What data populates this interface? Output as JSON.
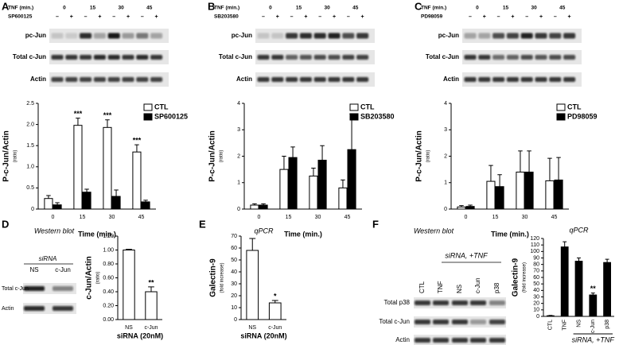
{
  "panels": [
    "A",
    "B",
    "C",
    "D",
    "E",
    "F"
  ],
  "blots": [
    {
      "time_label": "TNF (min.)",
      "times": [
        "0",
        "15",
        "30",
        "45"
      ],
      "treatment": "SP600125",
      "signs": [
        "–",
        "+",
        "–",
        "+",
        "–",
        "+",
        "–",
        "+"
      ],
      "rows": [
        "pc-Jun",
        "Total c-Jun",
        "Actin"
      ]
    },
    {
      "time_label": "TNF (min.)",
      "times": [
        "0",
        "15",
        "30",
        "45"
      ],
      "treatment": "SB203580",
      "signs": [
        "–",
        "+",
        "–",
        "+",
        "–",
        "+",
        "–",
        "+"
      ],
      "rows": [
        "pc-Jun",
        "Total c-Jun",
        "Actin"
      ]
    },
    {
      "time_label": "TNF (min.)",
      "times": [
        "0",
        "15",
        "30",
        "45"
      ],
      "treatment": "PD98059",
      "signs": [
        "–",
        "+",
        "–",
        "+",
        "–",
        "+",
        "–",
        "+"
      ],
      "rows": [
        "pc-Jun",
        "Total c-Jun",
        "Actin"
      ]
    },
    {
      "title": "Western blot",
      "group": "siRNA",
      "lanes": [
        "NS",
        "c-Jun"
      ],
      "rows": [
        "Total c-Jun",
        "Actin"
      ]
    },
    {
      "title": "Western blot",
      "group": "siRNA, +TNF",
      "lanes": [
        "CTL",
        "TNF",
        "NS",
        "c-Jun",
        "p38"
      ],
      "rows": [
        "Total p38",
        "Total c-Jun",
        "Actin"
      ]
    }
  ],
  "chart_data": [
    {
      "type": "bar",
      "ylabel": "P-c-Jun/Actin",
      "ylabel_note": "(ratio)",
      "xlabel": "Time (min.)",
      "categories": [
        "0",
        "15",
        "30",
        "45"
      ],
      "series": [
        {
          "name": "CTL",
          "color": "#ffffff",
          "values": [
            0.25,
            1.98,
            1.93,
            1.35
          ],
          "errors": [
            0.07,
            0.17,
            0.18,
            0.17
          ],
          "significance": [
            null,
            "***",
            "***",
            "***"
          ]
        },
        {
          "name": "SP600125",
          "color": "#000000",
          "values": [
            0.1,
            0.4,
            0.3,
            0.17
          ],
          "errors": [
            0.05,
            0.07,
            0.15,
            0.04
          ]
        }
      ],
      "ylim": [
        0,
        2.5
      ],
      "yticks": [
        0,
        0.5,
        {
          "value": 1,
          "label": "1.0"
        },
        1.5,
        {
          "value": 2,
          "label": "2.0"
        },
        2.5
      ]
    },
    {
      "type": "bar",
      "ylabel": "P-c-Jun/Actin",
      "ylabel_note": "(ratio)",
      "xlabel": "Time (min.)",
      "categories": [
        "0",
        "15",
        "30",
        "45"
      ],
      "series": [
        {
          "name": "CTL",
          "color": "#ffffff",
          "values": [
            0.15,
            1.5,
            1.25,
            0.8
          ],
          "errors": [
            0.05,
            0.5,
            0.3,
            0.3
          ]
        },
        {
          "name": "SB203580",
          "color": "#000000",
          "values": [
            0.15,
            1.95,
            1.85,
            2.25
          ],
          "errors": [
            0.05,
            0.4,
            0.55,
            1.35
          ]
        }
      ],
      "ylim": [
        0,
        4
      ],
      "yticks": [
        0,
        1,
        2,
        3,
        4
      ]
    },
    {
      "type": "bar",
      "ylabel": "P-c-Jun/Actin",
      "ylabel_note": "(ratio)",
      "xlabel": "Time (min.)",
      "categories": [
        "0",
        "15",
        "30",
        "45"
      ],
      "series": [
        {
          "name": "CTL",
          "color": "#ffffff",
          "values": [
            0.08,
            1.05,
            1.4,
            1.07
          ],
          "errors": [
            0.05,
            0.6,
            0.8,
            0.85
          ]
        },
        {
          "name": "PD98059",
          "color": "#000000",
          "values": [
            0.1,
            0.85,
            1.4,
            1.1
          ],
          "errors": [
            0.05,
            0.45,
            0.8,
            0.85
          ]
        }
      ],
      "ylim": [
        0,
        4
      ],
      "yticks": [
        0,
        1,
        2,
        3,
        4
      ]
    },
    {
      "type": "bar",
      "ylabel": "c-Jun/Actin",
      "ylabel_note": "(ratio)",
      "xlabel": "siRNA (20nM)",
      "categories": [
        "NS",
        "c-Jun"
      ],
      "color": "#ffffff",
      "values": [
        1.0,
        0.4
      ],
      "errors": [
        0.01,
        0.07
      ],
      "significance": [
        null,
        "**"
      ],
      "ylim": [
        0,
        1.2
      ],
      "yticks": [
        {
          "value": 0,
          "label": "0.00"
        },
        {
          "value": 0.2,
          "label": "0.20"
        },
        {
          "value": 0.4,
          "label": "0.40"
        },
        {
          "value": 0.6,
          "label": "0.60"
        },
        {
          "value": 0.8,
          "label": "0.80"
        },
        {
          "value": 1,
          "label": "1.00"
        },
        {
          "value": 1.2,
          "label": "1.20"
        }
      ]
    },
    {
      "type": "bar",
      "title": "qPCR",
      "ylabel": "Galectin-9",
      "ylabel_note": "(fold increase)",
      "xlabel": "siRNA (20nM)",
      "categories": [
        "NS",
        "c-Jun"
      ],
      "color": "#ffffff",
      "values": [
        58,
        14
      ],
      "errors": [
        10,
        2
      ],
      "significance": [
        null,
        "*"
      ],
      "ylim": [
        0,
        70
      ],
      "yticks": [
        0,
        10,
        20,
        30,
        40,
        50,
        60,
        70
      ]
    },
    {
      "type": "bar",
      "title": "qPCR",
      "ylabel": "Galectin-9",
      "ylabel_note": "(fold increase)",
      "group_label": "siRNA, +TNF",
      "categories": [
        "CTL",
        "TNF",
        "NS",
        "c-Jun",
        "p38"
      ],
      "color": "#000000",
      "values": [
        1,
        107,
        85,
        33,
        83
      ],
      "errors": [
        0.5,
        8,
        5,
        3,
        5
      ],
      "significance": [
        null,
        null,
        null,
        "**",
        null
      ],
      "ylim": [
        0,
        120
      ],
      "yticks": [
        0,
        10,
        20,
        30,
        40,
        50,
        60,
        70,
        80,
        90,
        100,
        110,
        120
      ]
    }
  ]
}
